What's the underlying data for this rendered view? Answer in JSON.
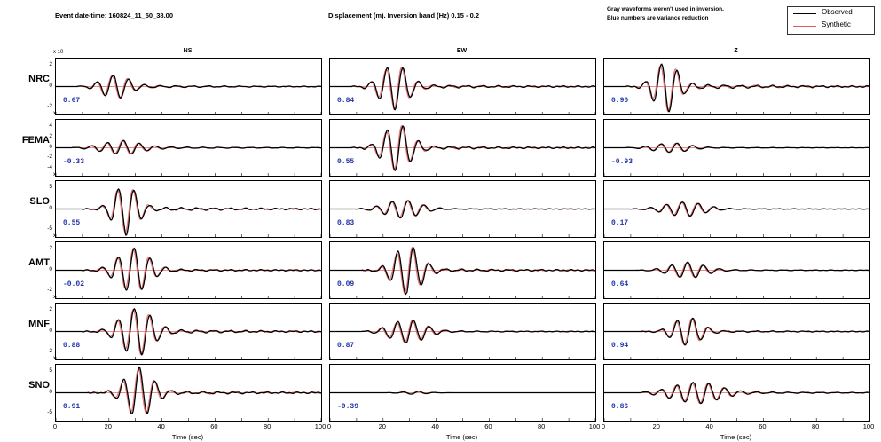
{
  "header": {
    "event": "Event date-time: 160824_11_50_38.00",
    "band": "Displacement (m).  Inversion band (Hz)  0.15 - 0.2",
    "note_line1": "Gray waveforms weren't used in inversion.",
    "note_line2": "Blue numbers are variance reduction"
  },
  "legend": {
    "observed": "Observed",
    "synthetic": "Synthetic"
  },
  "colors": {
    "observed": "#000000",
    "synthetic": "#e05a5a",
    "vr": "#2233aa",
    "zero": "#cc2222"
  },
  "chart_data": {
    "type": "line",
    "components": [
      "NS",
      "EW",
      "Z"
    ],
    "stations": [
      "NRC",
      "FEMA",
      "SLO",
      "AMT",
      "MNF",
      "SNO"
    ],
    "xlabel": "Time (sec)",
    "xlim": [
      0,
      100
    ],
    "xticks": [
      "0",
      "20",
      "40",
      "60",
      "80",
      "100"
    ],
    "y_exponent": "x 10",
    "variance_reduction": [
      [
        "0.67",
        "0.84",
        "0.90"
      ],
      [
        "-0.33",
        "0.55",
        "-0.93"
      ],
      [
        "0.55",
        "0.83",
        "0.17"
      ],
      [
        "-0.02",
        "0.09",
        "0.64"
      ],
      [
        "0.88",
        "0.87",
        "0.94"
      ],
      [
        "0.91",
        "-0.39",
        "0.86"
      ]
    ],
    "yticks": [
      [
        "2",
        "0",
        "-2"
      ],
      [
        "4",
        "2",
        "0",
        "-2",
        "-4"
      ],
      [
        "5",
        "0",
        "-5"
      ],
      [
        "2",
        "0",
        "-2"
      ],
      [
        "2",
        "0",
        "-2"
      ],
      [
        "5",
        "0",
        "-5"
      ]
    ],
    "waveforms": [
      [
        {
          "start": 8,
          "peak_t": 22,
          "amp": 0.45,
          "period": 6,
          "width": 7,
          "tail": 0.12
        },
        {
          "start": 8,
          "peak_t": 24,
          "amp": 0.85,
          "period": 6,
          "width": 7,
          "tail": 0.08
        },
        {
          "start": 8,
          "peak_t": 23,
          "amp": 0.95,
          "period": 6,
          "width": 6,
          "tail": 0.1
        }
      ],
      [
        {
          "start": 6,
          "peak_t": 24,
          "amp": 0.25,
          "period": 6,
          "width": 10,
          "tail": 0.18
        },
        {
          "start": 8,
          "peak_t": 25,
          "amp": 0.9,
          "period": 6,
          "width": 7,
          "tail": 0.07
        },
        {
          "start": 8,
          "peak_t": 25,
          "amp": 0.18,
          "period": 6,
          "width": 9,
          "tail": 0.08
        }
      ],
      [
        {
          "start": 10,
          "peak_t": 26,
          "amp": 0.95,
          "period": 6,
          "width": 6,
          "tail": 0.08
        },
        {
          "start": 10,
          "peak_t": 27,
          "amp": 0.35,
          "period": 6,
          "width": 9,
          "tail": 0.05
        },
        {
          "start": 10,
          "peak_t": 30,
          "amp": 0.28,
          "period": 6,
          "width": 10,
          "tail": 0.05
        }
      ],
      [
        {
          "start": 10,
          "peak_t": 29,
          "amp": 0.85,
          "period": 6,
          "width": 8,
          "tail": 0.05
        },
        {
          "start": 12,
          "peak_t": 29,
          "amp": 0.95,
          "period": 6,
          "width": 7,
          "tail": 0.06
        },
        {
          "start": 12,
          "peak_t": 31,
          "amp": 0.3,
          "period": 6,
          "width": 9,
          "tail": 0.08
        }
      ],
      [
        {
          "start": 10,
          "peak_t": 30,
          "amp": 0.92,
          "period": 6,
          "width": 8,
          "tail": 0.08
        },
        {
          "start": 12,
          "peak_t": 29,
          "amp": 0.45,
          "period": 6,
          "width": 9,
          "tail": 0.06
        },
        {
          "start": 14,
          "peak_t": 31,
          "amp": 0.55,
          "period": 6,
          "width": 7,
          "tail": 0.06
        }
      ],
      [
        {
          "start": 12,
          "peak_t": 31,
          "amp": 0.95,
          "period": 6,
          "width": 7,
          "tail": 0.07
        },
        {
          "start": 20,
          "peak_t": 32,
          "amp": 0.06,
          "period": 6,
          "width": 6,
          "tail": 0.01
        },
        {
          "start": 14,
          "peak_t": 34,
          "amp": 0.4,
          "period": 6,
          "width": 12,
          "tail": 0.12
        }
      ]
    ]
  }
}
